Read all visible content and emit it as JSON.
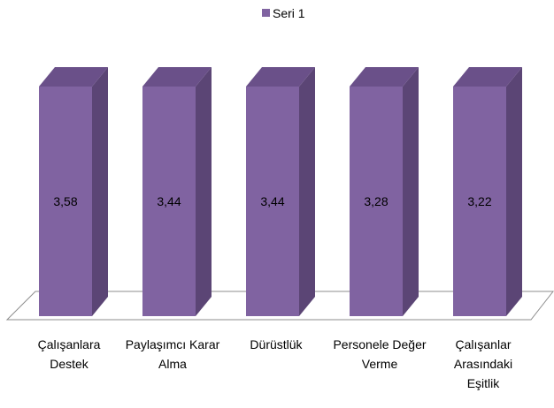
{
  "chart_data": {
    "type": "bar",
    "title": "",
    "xlabel": "",
    "ylabel": "",
    "categories": [
      [
        "Çalışanlara",
        "Destek"
      ],
      [
        "Paylaşımcı Karar",
        "Alma"
      ],
      [
        "Dürüstlük"
      ],
      [
        "Personele Değer",
        "Verme"
      ],
      [
        "Çalışanlar",
        "Arasındaki",
        "Eşitlik"
      ]
    ],
    "series": [
      {
        "name": "Seri 1",
        "values": [
          "3,58",
          "3,44",
          "3,44",
          "3,28",
          "3,22"
        ]
      }
    ],
    "legend": "top",
    "grid": false,
    "three_d": true,
    "colors": {
      "front": "#8063a1",
      "side": "#5b4575",
      "top": "#6a5089",
      "floor_stroke": "#8c8c8c",
      "floor_fill": "#ffffff"
    }
  }
}
